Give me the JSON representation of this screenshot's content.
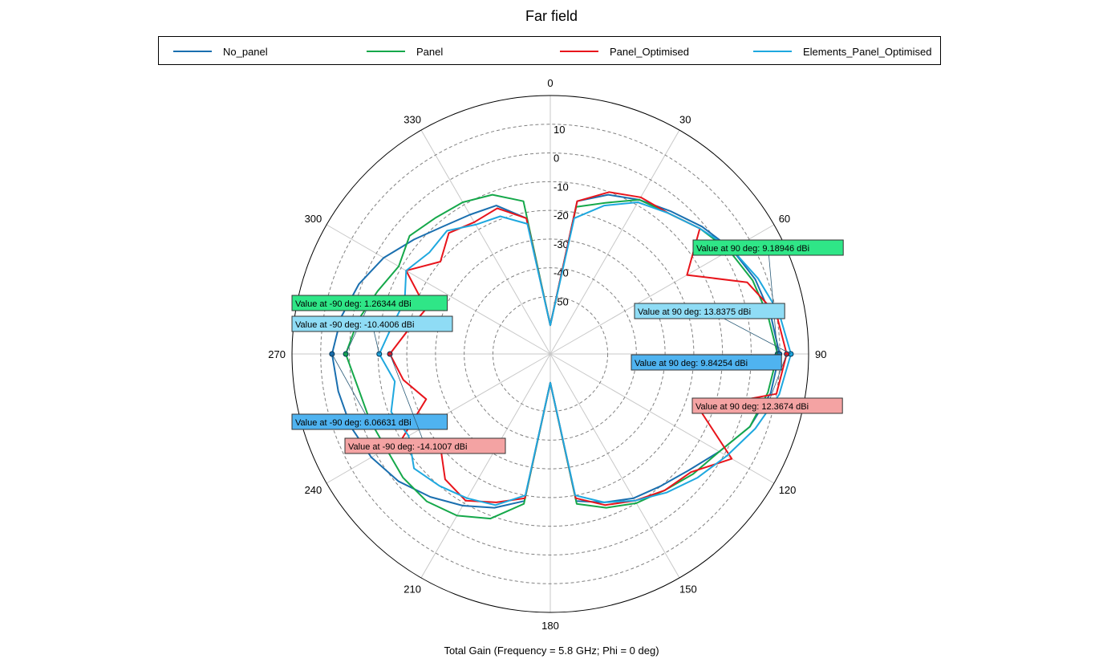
{
  "title": "Far field",
  "subtitle": "Total Gain (Frequency = 5.8 GHz; Phi = 0 deg)",
  "legend": [
    {
      "name": "No_panel",
      "color": "#1a6faf"
    },
    {
      "name": "Panel",
      "color": "#15a84a"
    },
    {
      "name": "Panel_Optimised",
      "color": "#e8141b"
    },
    {
      "name": "Elements_Panel_Optimised",
      "color": "#1ea8df"
    }
  ],
  "chart_data": {
    "type": "polar",
    "title": "Far field",
    "xlabel": "Total Gain (Frequency = 5.8 GHz; Phi = 0 deg)",
    "unit": "dBi",
    "r_range": [
      -70,
      20
    ],
    "radial_ticks": [
      10,
      0,
      -10,
      -20,
      -30,
      -40,
      -50
    ],
    "angle_ticks": [
      0,
      30,
      60,
      90,
      120,
      150,
      180,
      210,
      240,
      270,
      300,
      330
    ],
    "grid": true,
    "legend_position": "top",
    "series": [
      {
        "name": "No_panel",
        "color": "#1a6faf",
        "angles": [
          0,
          10,
          20,
          30,
          40,
          50,
          60,
          70,
          80,
          90,
          100,
          110,
          120,
          130,
          140,
          150,
          160,
          170,
          180,
          190,
          200,
          210,
          220,
          230,
          240,
          250,
          260,
          270,
          280,
          290,
          300,
          310,
          320,
          330,
          340,
          350
        ],
        "values": [
          -60,
          -16,
          -11,
          -8,
          -5,
          -1,
          3,
          6,
          8,
          9.84254,
          8,
          4,
          -2,
          -7,
          -10,
          -12,
          -15,
          -18,
          -60,
          -18,
          -13,
          -9,
          -5,
          -1,
          2,
          4,
          5,
          6.06631,
          4,
          1,
          -3,
          -8,
          -12,
          -14,
          -15,
          -22
        ]
      },
      {
        "name": "Panel",
        "color": "#15a84a",
        "angles": [
          0,
          10,
          20,
          30,
          40,
          50,
          60,
          70,
          80,
          90,
          100,
          110,
          120,
          130,
          140,
          150,
          160,
          170,
          180,
          190,
          200,
          210,
          220,
          230,
          240,
          250,
          260,
          270,
          280,
          290,
          300,
          310,
          320,
          330,
          340,
          350
        ],
        "values": [
          -60,
          -18,
          -14,
          -8,
          -6,
          -2,
          2,
          5,
          7,
          9.18946,
          7,
          4,
          -2,
          -5,
          -8,
          -10,
          -13,
          -17,
          -60,
          -17,
          -9,
          -5,
          -3,
          -3,
          -4,
          -3,
          -2,
          1.26344,
          -2,
          -6,
          -9,
          -6,
          -8,
          -9,
          -11,
          -16
        ]
      },
      {
        "name": "Panel_Optimised",
        "color": "#e8141b",
        "angles": [
          0,
          10,
          20,
          30,
          40,
          50,
          60,
          70,
          80,
          90,
          100,
          110,
          120,
          130,
          140,
          150,
          160,
          170,
          180,
          190,
          200,
          210,
          220,
          230,
          240,
          250,
          260,
          270,
          280,
          290,
          300,
          310,
          320,
          330,
          340,
          350
        ],
        "values": [
          -60,
          -16,
          -10,
          -7,
          -6,
          -2,
          -15,
          3,
          10,
          12.3674,
          10,
          -15,
          3,
          -6,
          -8,
          -11,
          -14,
          -19,
          -60,
          -19,
          -15,
          -11,
          -13,
          -20,
          -10,
          -24,
          -18,
          -14.1007,
          -20,
          -24,
          -12,
          -20,
          -15,
          -17,
          -16,
          -22
        ]
      },
      {
        "name": "Elements_Panel_Optimised",
        "color": "#1ea8df",
        "angles": [
          0,
          10,
          20,
          30,
          40,
          50,
          60,
          70,
          80,
          90,
          100,
          110,
          120,
          130,
          140,
          150,
          160,
          170,
          180,
          190,
          200,
          210,
          220,
          230,
          240,
          250,
          260,
          270,
          280,
          290,
          300,
          310,
          320,
          330,
          340,
          350
        ],
        "values": [
          -60,
          -22,
          -15,
          -9,
          -6,
          -2,
          3,
          7,
          11,
          13.8375,
          11,
          6,
          1,
          -3,
          -7,
          -11,
          -15,
          -20,
          -60,
          -20,
          -14,
          -12,
          -10,
          -8,
          -13,
          -11,
          -15,
          -10.4006,
          -14,
          -16,
          -12,
          -15,
          -14,
          -18,
          -19,
          -24
        ]
      }
    ],
    "annotations": [
      {
        "text": "Value at 90 deg: 9.18946 dBi",
        "series": "Panel",
        "angle": 90,
        "value": 9.18946,
        "color": "#2fe687"
      },
      {
        "text": "Value at 90 deg: 13.8375 dBi",
        "series": "Elements_Panel_Optimised",
        "angle": 90,
        "value": 13.8375,
        "color": "#8fdcf5"
      },
      {
        "text": "Value at 90 deg: 9.84254 dBi",
        "series": "No_panel",
        "angle": 90,
        "value": 9.84254,
        "color": "#4fb3f0"
      },
      {
        "text": "Value at 90 deg: 12.3674 dBi",
        "series": "Panel_Optimised",
        "angle": 90,
        "value": 12.3674,
        "color": "#f4a3a3"
      },
      {
        "text": "Value at -90 deg: 1.26344 dBi",
        "series": "Panel",
        "angle": 270,
        "value": 1.26344,
        "color": "#2fe687"
      },
      {
        "text": "Value at -90 deg: -10.4006 dBi",
        "series": "Elements_Panel_Optimised",
        "angle": 270,
        "value": -10.4006,
        "color": "#8fdcf5"
      },
      {
        "text": "Value at -90 deg: 6.06631 dBi",
        "series": "No_panel",
        "angle": 270,
        "value": 6.06631,
        "color": "#4fb3f0"
      },
      {
        "text": "Value at -90 deg: -14.1007 dBi",
        "series": "Panel_Optimised",
        "angle": 270,
        "value": -14.1007,
        "color": "#f4a3a3"
      }
    ]
  }
}
